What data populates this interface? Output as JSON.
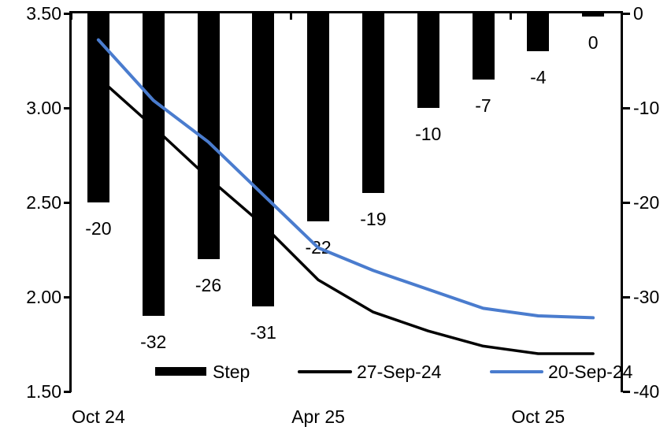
{
  "chart_data": {
    "type": "bar",
    "subtype": "bar-line-combo",
    "title": "",
    "n_categories": 10,
    "x_axis": {
      "tick_labels": [
        {
          "label": "Oct 24",
          "category_index": 0
        },
        {
          "label": "Apr 25",
          "category_index": 4
        },
        {
          "label": "Oct 25",
          "category_index": 8
        }
      ]
    },
    "left_axis": {
      "range": [
        1.5,
        3.5
      ],
      "tick_labels": [
        "3.50",
        "3.00",
        "2.50",
        "2.00",
        "1.50"
      ]
    },
    "right_axis": {
      "range": [
        -40,
        0
      ],
      "tick_labels": [
        "0",
        "-10",
        "-20",
        "-30",
        "-40"
      ]
    },
    "bar_series": {
      "name": "Step",
      "axis": "right",
      "color": "#000000",
      "values": [
        -20,
        -32,
        -26,
        -31,
        -22,
        -19,
        -10,
        -7,
        -4,
        0
      ],
      "data_labels": [
        "-20",
        "-32",
        "-26",
        "-31",
        "-22",
        "-19",
        "-10",
        "-7",
        "-4",
        "0"
      ]
    },
    "line_series": [
      {
        "name": "27-Sep-24",
        "axis": "left",
        "color": "#000000",
        "values": [
          3.16,
          2.9,
          2.63,
          2.38,
          2.09,
          1.92,
          1.82,
          1.74,
          1.7,
          1.7
        ]
      },
      {
        "name": "20-Sep-24",
        "axis": "left",
        "color": "#4a7cce",
        "values": [
          3.36,
          3.04,
          2.82,
          2.54,
          2.26,
          2.14,
          2.04,
          1.94,
          1.9,
          1.89
        ]
      }
    ],
    "legend": {
      "position": "bottom",
      "entries": [
        {
          "label": "Step",
          "marker": "bar",
          "color": "#000000"
        },
        {
          "label": "27-Sep-24",
          "marker": "line",
          "color": "#000000"
        },
        {
          "label": "20-Sep-24",
          "marker": "line",
          "color": "#4a7cce"
        }
      ]
    },
    "grid": "off"
  }
}
